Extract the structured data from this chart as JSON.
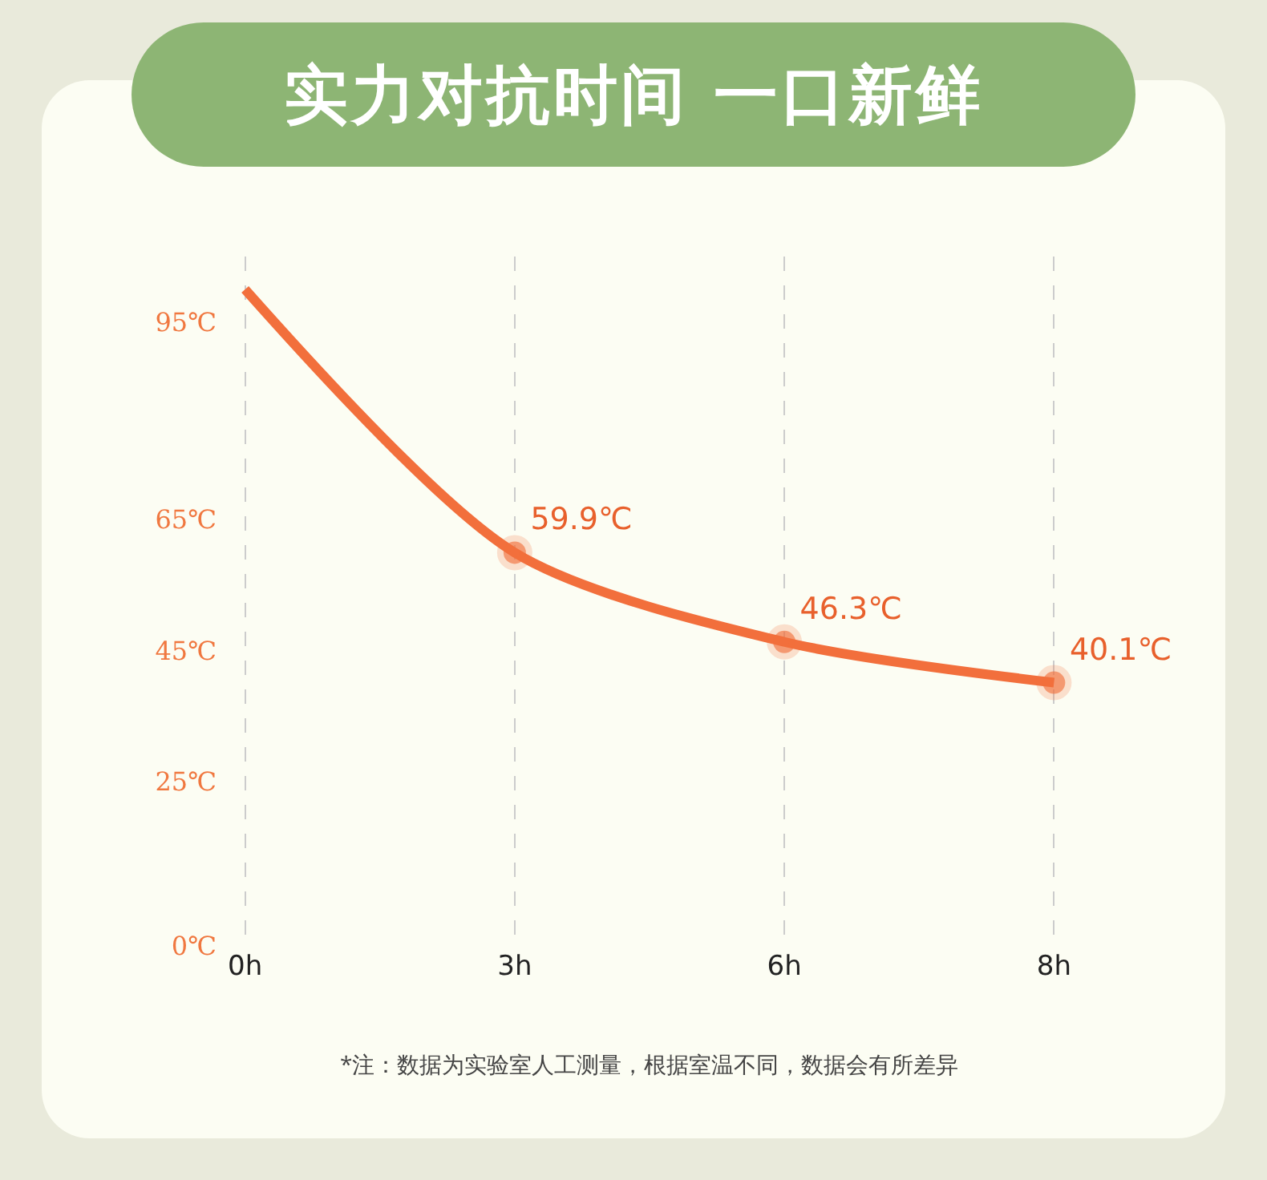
{
  "chart_data": {
    "type": "line",
    "title": "实力对抗时间 一口新鲜",
    "categories": [
      "0h",
      "3h",
      "6h",
      "8h"
    ],
    "series": [
      {
        "color": "#f26f3c",
        "values": [
          100,
          59.9,
          46.3,
          40.1
        ],
        "value_labels": [
          null,
          "59.9℃",
          "46.3℃",
          "40.1℃"
        ]
      }
    ],
    "ylim": [
      0,
      105
    ],
    "yticks": [
      {
        "value": 0,
        "label": "0℃"
      },
      {
        "value": 25,
        "label": "25℃"
      },
      {
        "value": 45,
        "label": "45℃"
      },
      {
        "value": 65,
        "label": "65℃"
      },
      {
        "value": 95,
        "label": "95℃"
      }
    ],
    "grid": "x",
    "marker": "circle",
    "line_style": "solid",
    "annotations": [
      "*注：数据为实验室人工测量，根据室温不同，数据会有所差异"
    ]
  }
}
